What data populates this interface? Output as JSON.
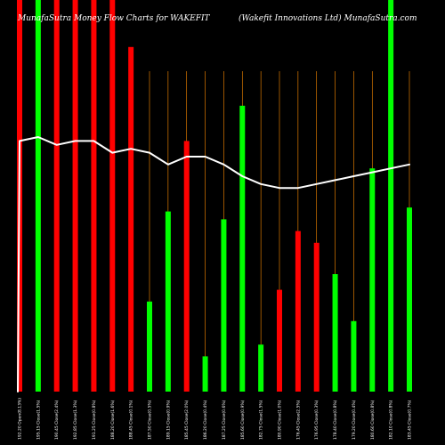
{
  "chart_data": {
    "type": "bar",
    "title_left": "MunafaSutra Money Flow Charts for WAKEFIT",
    "title_right": "(Wakefit Innovations Ltd) MunafaSutra.com",
    "xlabel": "",
    "ylabel": "",
    "grid": false,
    "legend": "none",
    "colors": {
      "background": "#000000",
      "up": "#00ff00",
      "down": "#ff0000",
      "line": "#ffffff",
      "gridline": "#ff8c00",
      "label": "#ffffff"
    },
    "ylim": [
      0,
      100
    ],
    "line_ylim": [
      0,
      100
    ],
    "categories": [
      "192.20 Open(8.13%)",
      "195.15 Close(1.5%)",
      "190.45 Close(2.4%)",
      "192.85 Close(1.3%)",
      "191.25 Close(0.8%)",
      "188.20 Close(1.6%)",
      "188.45 Close(0.1%)",
      "187.50 Close(0.5%)",
      "189.15 Close(0.9%)",
      "185.45 Close(2.0%)",
      "186.20 Close(0.4%)",
      "187.25 Close(0.6%)",
      "185.60 Close(0.9%)",
      "182.75 Close(1.5%)",
      "180.90 Close(1.0%)",
      "176.45 Close(2.5%)",
      "176.95 Close(0.3%)",
      "178.40 Close(0.8%)",
      "179.20 Close(0.4%)",
      "180.60 Close(0.8%)",
      "182.10 Close(0.8%)",
      "183.45 Close(0.7%)"
    ],
    "series": [
      {
        "values": [
          100,
          100,
          100,
          100,
          100,
          100,
          88,
          23,
          46,
          64,
          9,
          44,
          73,
          12,
          26,
          41,
          38,
          30,
          18,
          57,
          100,
          47
        ],
        "directions": [
          "down",
          "up",
          "down",
          "down",
          "down",
          "down",
          "down",
          "up",
          "up",
          "down",
          "up",
          "up",
          "up",
          "up",
          "down",
          "down",
          "down",
          "up",
          "up",
          "up",
          "up",
          "up"
        ]
      },
      {
        "type": "line",
        "values": [
          64,
          65,
          63,
          64,
          64,
          61,
          62,
          61,
          58,
          60,
          60,
          58,
          55,
          53,
          52,
          52,
          53,
          54,
          55,
          56,
          57,
          58
        ]
      }
    ]
  }
}
